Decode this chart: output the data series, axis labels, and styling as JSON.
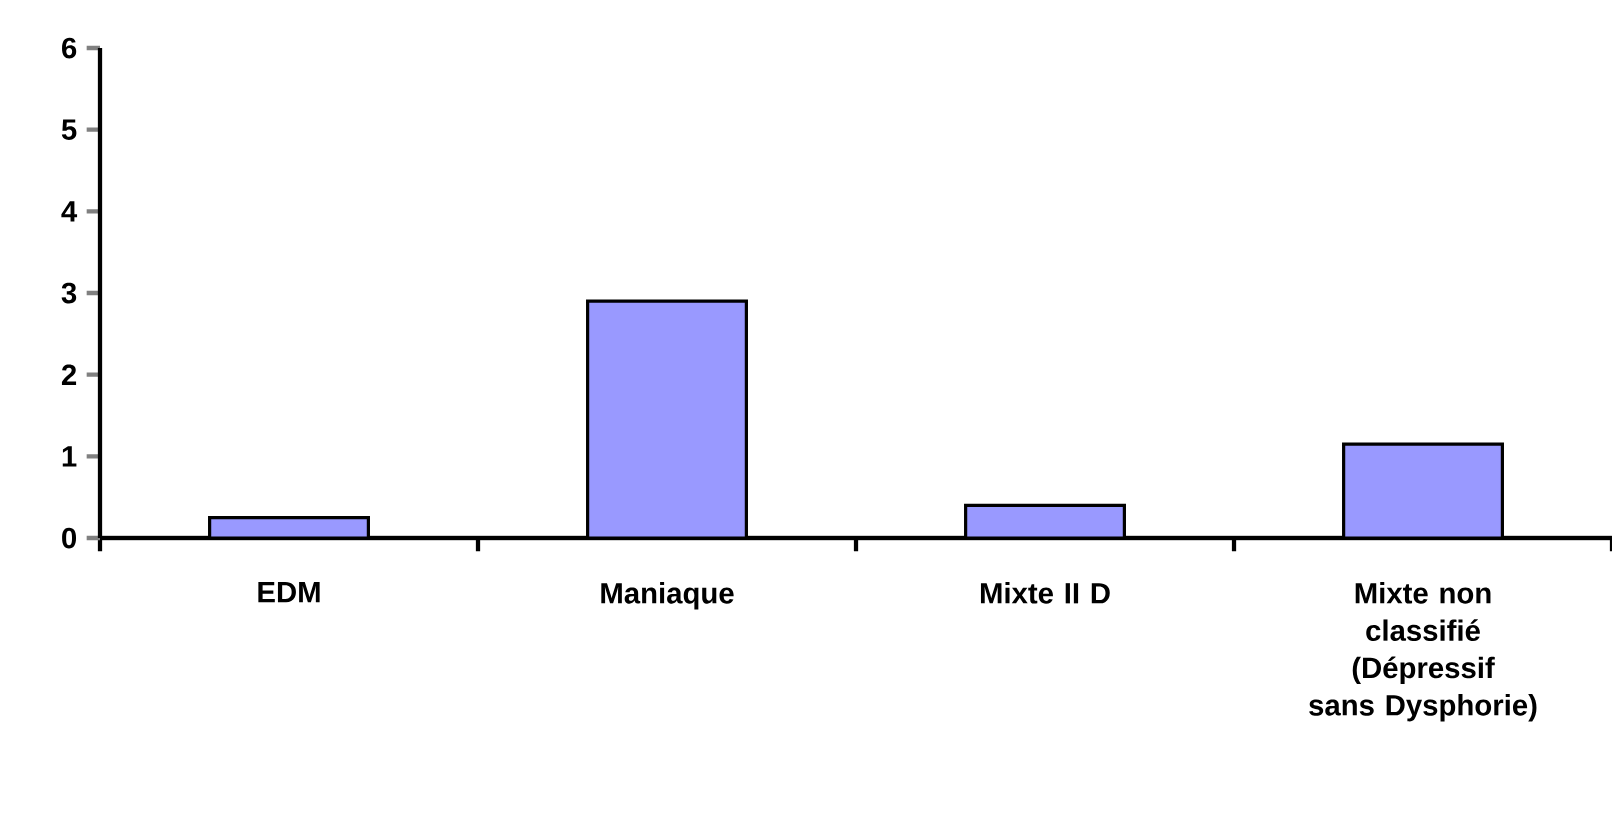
{
  "chart_data": {
    "type": "bar",
    "categories": [
      "EDM",
      "Maniaque",
      "Mixte II D",
      "Mixte non classifié (Dépressif sans Dysphorie)"
    ],
    "values": [
      0.25,
      2.9,
      0.4,
      1.15
    ],
    "color": "#9999ff",
    "ylim": [
      0,
      6
    ],
    "yticks": [
      0,
      1,
      2,
      3,
      4,
      5,
      6
    ]
  }
}
